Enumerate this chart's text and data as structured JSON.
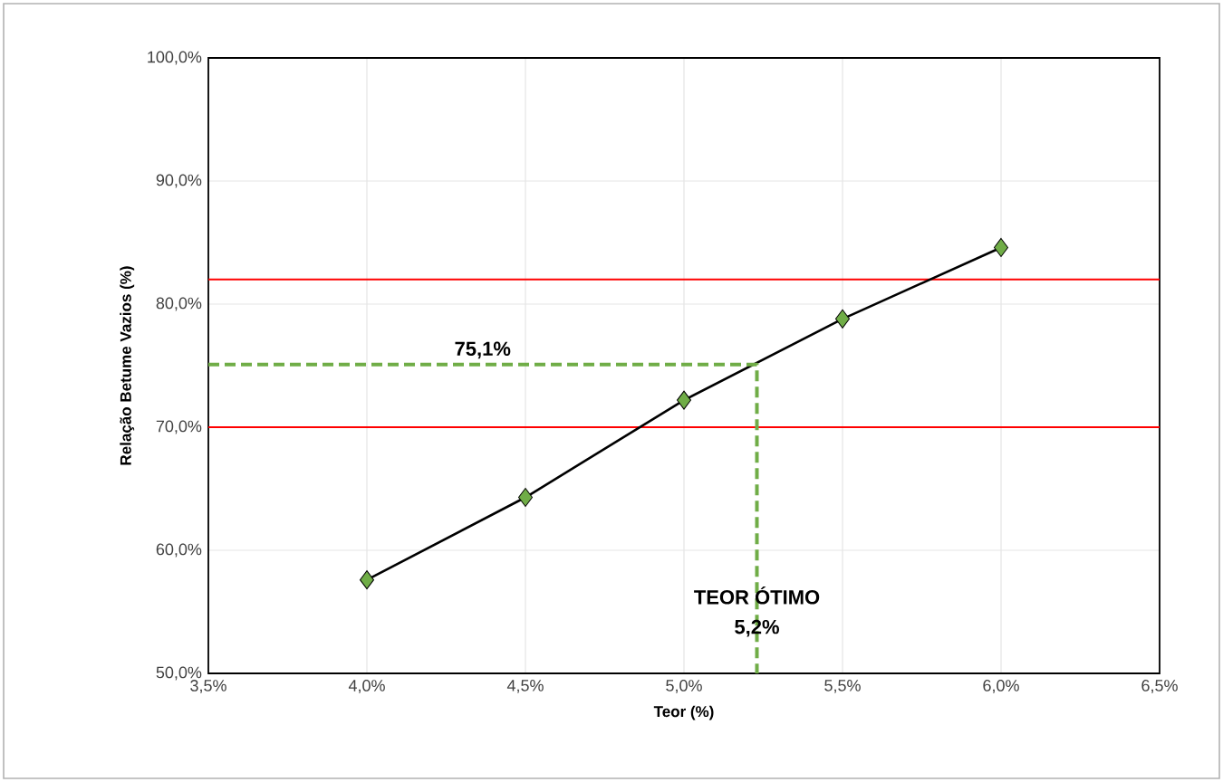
{
  "chart_data": {
    "type": "line",
    "xlabel": "Teor (%)",
    "ylabel": "Relação Betume Vazios (%)",
    "xlim": [
      3.5,
      6.5
    ],
    "ylim": [
      50,
      100
    ],
    "xticks": [
      {
        "value": 3.5,
        "label": "3,5%"
      },
      {
        "value": 4.0,
        "label": "4,0%"
      },
      {
        "value": 4.5,
        "label": "4,5%"
      },
      {
        "value": 5.0,
        "label": "5,0%"
      },
      {
        "value": 5.5,
        "label": "5,5%"
      },
      {
        "value": 6.0,
        "label": "6,0%"
      },
      {
        "value": 6.5,
        "label": "6,5%"
      }
    ],
    "yticks": [
      {
        "value": 50,
        "label": "50,0%"
      },
      {
        "value": 60,
        "label": "60,0%"
      },
      {
        "value": 70,
        "label": "70,0%"
      },
      {
        "value": 80,
        "label": "80,0%"
      },
      {
        "value": 90,
        "label": "90,0%"
      },
      {
        "value": 100,
        "label": "100,0%"
      }
    ],
    "grid": true,
    "series": [
      {
        "type": "line",
        "color": "#000000",
        "marker": "none",
        "line_style": "solid",
        "x": [
          4.0,
          4.5,
          5.0,
          5.5,
          6.0
        ],
        "values": [
          57.6,
          64.3,
          72.2,
          78.8,
          84.6
        ]
      },
      {
        "type": "scatter",
        "color": "#70ad47",
        "marker": "diamond",
        "x": [
          4.0,
          4.5,
          5.0,
          5.5,
          6.0
        ],
        "values": [
          57.6,
          64.3,
          72.2,
          78.8,
          84.6
        ]
      },
      {
        "type": "line",
        "color": "#70ad47",
        "marker": "none",
        "line_style": "dashed",
        "x": [
          3.5,
          5.23,
          5.23
        ],
        "values": [
          75.1,
          75.1,
          50
        ]
      }
    ],
    "ref_lines": [
      {
        "axis": "y",
        "value": 70,
        "color": "#ff0000"
      },
      {
        "axis": "y",
        "value": 82,
        "color": "#ff0000"
      }
    ],
    "annotations": [
      "75,1%",
      "TEOR ÓTIMO",
      "5,2%"
    ]
  }
}
